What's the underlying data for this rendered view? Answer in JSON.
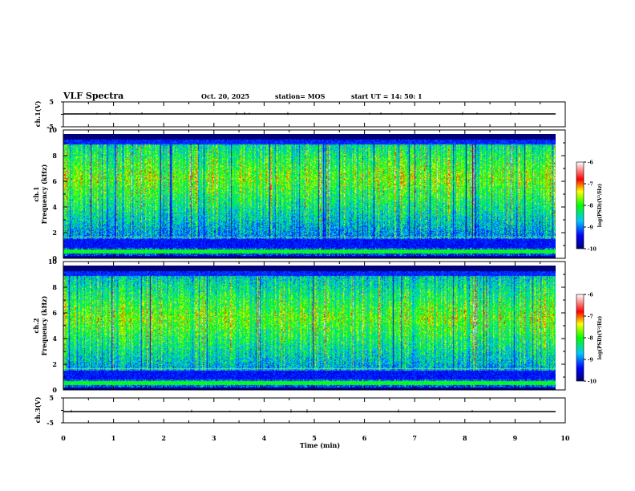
{
  "header": {
    "title": "VLF Spectra",
    "date": "Oct. 20, 2025",
    "station": "station= MOS",
    "start_ut": "start  UT =   14: 50: 1"
  },
  "chart_data": [
    {
      "type": "line",
      "name": "ch1-waveform",
      "ylabel": "ch.1(V)",
      "ylim": [
        -5,
        5
      ],
      "yticks": [
        "5",
        "-5"
      ],
      "series": [
        {
          "name": "ch.1",
          "level": 0.2
        }
      ]
    },
    {
      "type": "heatmap",
      "name": "ch1-spectrogram",
      "ylabel_top": "ch.1",
      "ylabel": "Frequency (kHz)",
      "ylim": [
        0,
        10
      ],
      "yticks": [
        "0",
        "2",
        "4",
        "6",
        "8",
        "10"
      ],
      "xlim": [
        0,
        10
      ],
      "data_extent_min": 9.85,
      "colorbar": {
        "label": "log(PSD)(V²/Hz)",
        "range": [
          -10,
          -6
        ],
        "ticks": [
          "-6",
          "-7",
          "-8",
          "-9",
          "-10"
        ]
      }
    },
    {
      "type": "heatmap",
      "name": "ch2-spectrogram",
      "ylabel_top": "ch.2",
      "ylabel": "Frequency (kHz)",
      "ylim": [
        0,
        10
      ],
      "yticks": [
        "0",
        "2",
        "4",
        "6",
        "8",
        "10"
      ],
      "xlim": [
        0,
        10
      ],
      "data_extent_min": 9.85,
      "colorbar": {
        "label": "log(PSD)(V²/Hz)",
        "range": [
          -10,
          -6
        ],
        "ticks": [
          "-6",
          "-7",
          "-8",
          "-9",
          "-10"
        ]
      }
    },
    {
      "type": "line",
      "name": "ch3-waveform",
      "ylabel": "ch.3(V)",
      "ylim": [
        -5,
        5
      ],
      "yticks": [
        "5",
        "-5"
      ],
      "series": [
        {
          "name": "ch.3",
          "level": -1.0
        }
      ]
    }
  ],
  "x_axis": {
    "label": "Time (min)",
    "range": [
      0,
      10
    ],
    "ticks": [
      "0",
      "1",
      "2",
      "3",
      "4",
      "5",
      "6",
      "7",
      "8",
      "9",
      "10"
    ]
  }
}
